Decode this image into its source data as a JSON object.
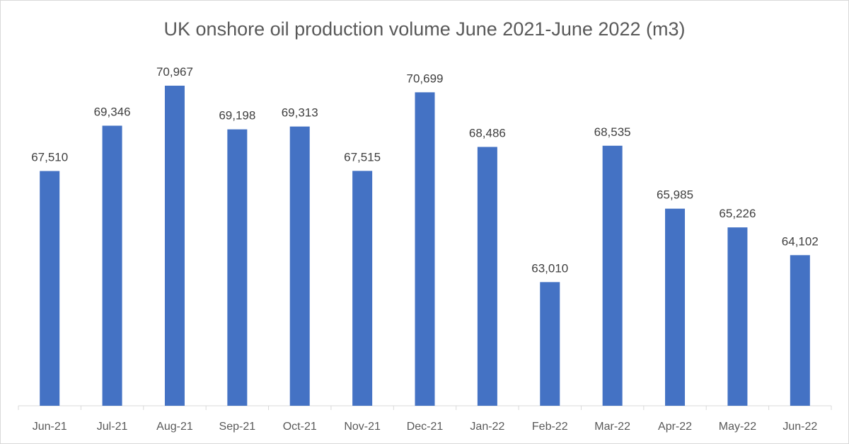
{
  "chart_data": {
    "type": "bar",
    "title": "UK onshore oil production volume June 2021-June 2022 (m3)",
    "xlabel": "",
    "ylabel": "",
    "categories": [
      "Jun-21",
      "Jul-21",
      "Aug-21",
      "Sep-21",
      "Oct-21",
      "Nov-21",
      "Dec-21",
      "Jan-22",
      "Feb-22",
      "Mar-22",
      "Apr-22",
      "May-22",
      "Jun-22"
    ],
    "values": [
      67510,
      69346,
      70967,
      69198,
      69313,
      67515,
      70699,
      68486,
      63010,
      68535,
      65985,
      65226,
      64102
    ],
    "data_labels": [
      "67,510",
      "69,346",
      "70,967",
      "69,198",
      "69,313",
      "67,515",
      "70,699",
      "68,486",
      "63,010",
      "68,535",
      "65,985",
      "65,226",
      "64,102"
    ],
    "ylim": [
      58000,
      72000
    ],
    "grid": false,
    "legend": "none",
    "bar_color": "#4472c4"
  }
}
